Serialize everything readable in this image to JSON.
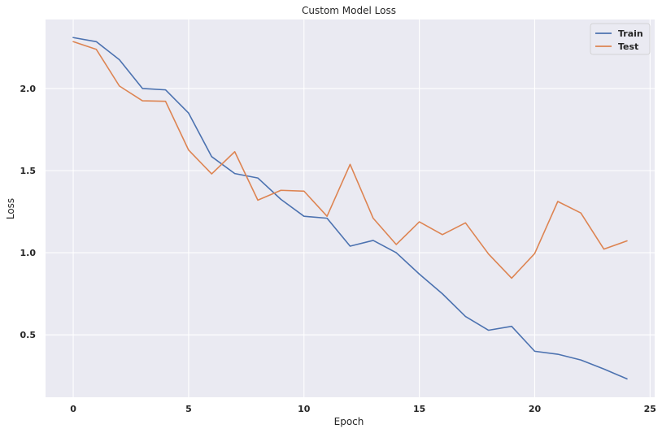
{
  "chart_data": {
    "type": "line",
    "title": "Custom Model Loss",
    "xlabel": "Epoch",
    "ylabel": "Loss",
    "xlim": [
      -1.2,
      25.2
    ],
    "ylim": [
      0.12,
      2.42
    ],
    "xticks": [
      0,
      5,
      10,
      15,
      20,
      25
    ],
    "yticks": [
      0.5,
      1.0,
      1.5,
      2.0
    ],
    "ytick_labels": [
      "0.5",
      "1.0",
      "1.5",
      "2.0"
    ],
    "grid": true,
    "legend_position": "top-right",
    "x": [
      0,
      1,
      2,
      3,
      4,
      5,
      6,
      7,
      8,
      9,
      10,
      11,
      12,
      13,
      14,
      15,
      16,
      17,
      18,
      19,
      20,
      21,
      22,
      23,
      24
    ],
    "series": [
      {
        "name": "Train",
        "color": "#4c72b0",
        "values": [
          2.31,
          2.285,
          2.175,
          2.0,
          1.992,
          1.85,
          1.585,
          1.482,
          1.455,
          1.325,
          1.222,
          1.21,
          1.04,
          1.075,
          1.0,
          0.87,
          0.75,
          0.612,
          0.528,
          0.552,
          0.4,
          0.382,
          0.347,
          0.292,
          0.232
        ]
      },
      {
        "name": "Test",
        "color": "#dd8452",
        "values": [
          2.285,
          2.238,
          2.015,
          1.925,
          1.922,
          1.625,
          1.48,
          1.615,
          1.32,
          1.38,
          1.375,
          1.222,
          1.538,
          1.21,
          1.05,
          1.188,
          1.11,
          1.182,
          0.992,
          0.845,
          0.995,
          1.312,
          1.242,
          1.022,
          1.072
        ]
      }
    ]
  },
  "style": {
    "plot_background": "#eaeaf2",
    "grid_color": "#ffffff"
  }
}
